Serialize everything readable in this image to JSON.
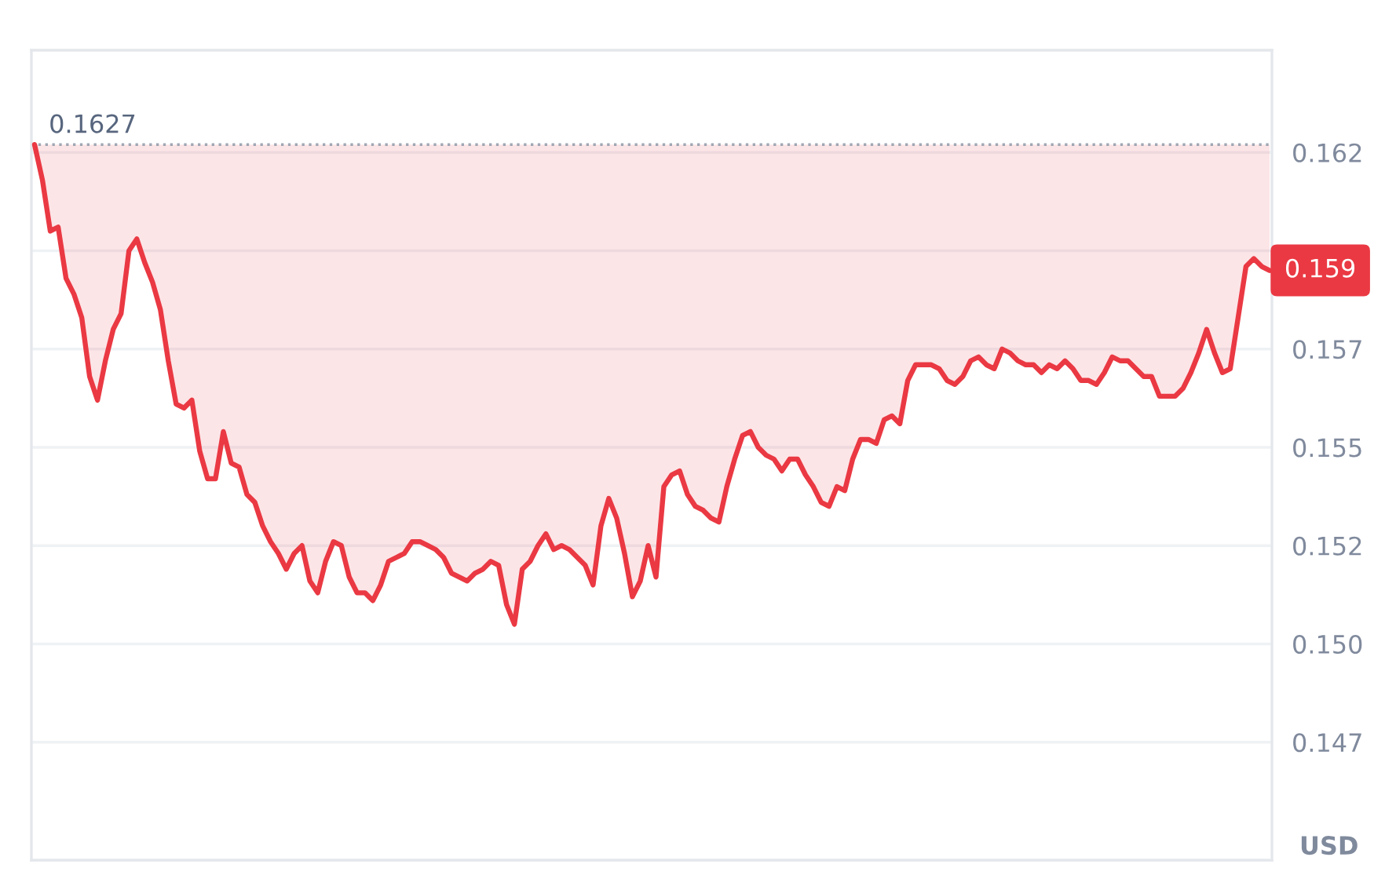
{
  "chart_data": {
    "type": "line",
    "categories": [
      null,
      null,
      null,
      null,
      null,
      null,
      null,
      null,
      null,
      null,
      null,
      null,
      null,
      null,
      null,
      null,
      null,
      null,
      null,
      null,
      null,
      null,
      null,
      null,
      null,
      null,
      null,
      null,
      null,
      null,
      null,
      null,
      null,
      null,
      null,
      null,
      null,
      null,
      null,
      null,
      null,
      null,
      null,
      null,
      null,
      null,
      null,
      null,
      null,
      null,
      null,
      null,
      null,
      null,
      null,
      null,
      null,
      null,
      null,
      null,
      null,
      null,
      null,
      null,
      null,
      null,
      null,
      null,
      null,
      null,
      null,
      null,
      null,
      null,
      null,
      null,
      null,
      null,
      null,
      null,
      null,
      null,
      null,
      null,
      null,
      null,
      null,
      null,
      null,
      null,
      null,
      null,
      null,
      null,
      null,
      null,
      null,
      null,
      null,
      null,
      null,
      null,
      null,
      null,
      null,
      null,
      null,
      null,
      null,
      null,
      null,
      null,
      null,
      null,
      null,
      null,
      null,
      null,
      null,
      null,
      null,
      null,
      null,
      null,
      null,
      null,
      null,
      null,
      null,
      null,
      null,
      null,
      null,
      null,
      null,
      null,
      null,
      null,
      null,
      null,
      null,
      null,
      null,
      null,
      null,
      null,
      null,
      null,
      null,
      null,
      null,
      null,
      null,
      null,
      null,
      null,
      null,
      null
    ],
    "series": [
      {
        "color": "#ea3943",
        "values": [
          0.1627,
          0.1618,
          0.1605,
          0.1606,
          0.1593,
          0.1589,
          0.1583,
          0.1568,
          0.1562,
          0.1572,
          0.158,
          0.1584,
          0.16,
          0.1603,
          0.1597,
          0.1592,
          0.1585,
          0.1572,
          0.1561,
          0.156,
          0.1562,
          0.1549,
          0.1542,
          0.1542,
          0.1554,
          0.1546,
          0.1545,
          0.1538,
          0.1536,
          0.153,
          0.1526,
          0.1523,
          0.1519,
          0.1523,
          0.1525,
          0.1516,
          0.1513,
          0.1521,
          0.1526,
          0.1525,
          0.1517,
          0.1513,
          0.1513,
          0.1511,
          0.1515,
          0.1521,
          0.1522,
          0.1523,
          0.1526,
          0.1526,
          0.1525,
          0.1524,
          0.1522,
          0.1518,
          0.1517,
          0.1516,
          0.1518,
          0.1519,
          0.1521,
          0.152,
          0.151,
          0.1505,
          0.1519,
          0.1521,
          0.1525,
          0.1528,
          0.1524,
          0.1525,
          0.1524,
          0.1522,
          0.152,
          0.1515,
          0.153,
          0.1537,
          0.1532,
          0.1523,
          0.1512,
          0.1516,
          0.1525,
          0.1517,
          0.154,
          0.1543,
          0.1544,
          0.1538,
          0.1535,
          0.1534,
          0.1532,
          0.1531,
          0.154,
          0.1547,
          0.1553,
          0.1554,
          0.155,
          0.1548,
          0.1547,
          0.1544,
          0.1547,
          0.1547,
          0.1543,
          0.154,
          0.1536,
          0.1535,
          0.154,
          0.1539,
          0.1547,
          0.1552,
          0.1552,
          0.1551,
          0.1557,
          0.1558,
          0.1556,
          0.1567,
          0.1571,
          0.1571,
          0.1571,
          0.157,
          0.1567,
          0.1566,
          0.1568,
          0.1572,
          0.1573,
          0.1571,
          0.157,
          0.1575,
          0.1574,
          0.1572,
          0.1571,
          0.1571,
          0.1569,
          0.1571,
          0.157,
          0.1572,
          0.157,
          0.1567,
          0.1567,
          0.1566,
          0.1569,
          0.1573,
          0.1572,
          0.1572,
          0.157,
          0.1568,
          0.1568,
          0.1563,
          0.1563,
          0.1563,
          0.1565,
          0.1569,
          0.1574,
          0.158,
          0.1574,
          0.1569,
          0.157,
          0.1583,
          0.1596,
          0.1598,
          0.1596,
          0.1595
        ],
        "lower": [
          0.1627,
          0.1618,
          0.1605,
          0.1606,
          0.1593,
          0.1589,
          0.1583,
          0.1568,
          0.1562,
          0.1572,
          0.158,
          0.1584,
          0.16,
          0.1603,
          0.1597,
          0.1592,
          0.1585,
          0.1572,
          0.1561,
          0.156,
          0.1562,
          0.1549,
          0.1542,
          0.1542,
          0.1554,
          0.1546,
          0.1545,
          0.1538,
          0.1536,
          0.153,
          0.1526,
          0.1523,
          0.1519,
          0.1523,
          0.1525,
          0.1516,
          0.1513,
          0.1521,
          0.1526,
          0.1525,
          0.1517,
          0.1513,
          0.1513,
          0.1511,
          0.1515,
          0.1521,
          0.1522,
          0.1523,
          0.1526,
          0.1526,
          0.1525,
          0.1524,
          0.1522,
          0.1518,
          0.1517,
          0.1516,
          0.1518,
          0.1519,
          0.1521,
          0.152,
          0.151,
          0.1505,
          0.1519,
          0.1521,
          0.1525,
          0.1528,
          0.1524,
          0.1525,
          0.1524,
          0.1522,
          0.152,
          0.1515,
          0.153,
          0.1537,
          0.1532,
          0.1523,
          0.1512,
          0.1516,
          0.1525,
          0.1517,
          0.154,
          0.1543,
          0.1544,
          0.1538,
          0.1535,
          0.1534,
          0.1532,
          0.1531,
          0.154,
          0.1547,
          0.1553,
          0.1554,
          0.155,
          0.1548,
          0.1547,
          0.1544,
          0.1547,
          0.1547,
          0.1543,
          0.154,
          0.1536,
          0.1535,
          0.154,
          0.1539,
          0.1547,
          0.1552,
          0.1552,
          0.1551,
          0.1557,
          0.1558,
          0.1556,
          0.1567,
          0.1571,
          0.1571,
          0.1571,
          0.157,
          0.1567,
          0.1566,
          0.1568,
          0.1572,
          0.1573,
          0.1571,
          0.157,
          0.1575,
          0.1574,
          0.1572,
          0.1571,
          0.1571,
          0.1569,
          0.1571,
          0.157,
          0.1572,
          0.157,
          0.1567,
          0.1567,
          0.1566,
          0.1569,
          0.1573,
          0.1572,
          0.1572,
          0.157,
          0.1568,
          0.1568,
          0.1563,
          0.1563,
          0.1563,
          0.1565,
          0.1569,
          0.1574,
          0.158,
          0.1574,
          0.1569,
          0.157,
          0.1583,
          0.1596,
          0.1598,
          0.1596,
          0.1595
        ],
        "upper": [
          0.1627,
          0.1627,
          0.1627,
          0.1627,
          0.1627,
          0.1627,
          0.1627,
          0.1627,
          0.1627,
          0.1627,
          0.1627,
          0.1627,
          0.1627,
          0.1627,
          0.1627,
          0.1627,
          0.1627,
          0.1627,
          0.1627,
          0.1627,
          0.1627,
          0.1627,
          0.1627,
          0.1627,
          0.1627,
          0.1627,
          0.1627,
          0.1627,
          0.1627,
          0.1627,
          0.1627,
          0.1627,
          0.1627,
          0.1627,
          0.1627,
          0.1627,
          0.1627,
          0.1627,
          0.1627,
          0.1627,
          0.1627,
          0.1627,
          0.1627,
          0.1627,
          0.1627,
          0.1627,
          0.1627,
          0.1627,
          0.1627,
          0.1627,
          0.1627,
          0.1627,
          0.1627,
          0.1627,
          0.1627,
          0.1627,
          0.1627,
          0.1627,
          0.1627,
          0.1627,
          0.1627,
          0.1627,
          0.1627,
          0.1627,
          0.1627,
          0.1627,
          0.1627,
          0.1627,
          0.1627,
          0.1627,
          0.1627,
          0.1627,
          0.1627,
          0.1627,
          0.1627,
          0.1627,
          0.1627,
          0.1627,
          0.1627,
          0.1627,
          0.1627,
          0.1627,
          0.1627,
          0.1627,
          0.1627,
          0.1627,
          0.1627,
          0.1627,
          0.1627,
          0.1627,
          0.1627,
          0.1627,
          0.1627,
          0.1627,
          0.1627,
          0.1627,
          0.1627,
          0.1627,
          0.1627,
          0.1627,
          0.1627,
          0.1627,
          0.1627,
          0.1627,
          0.1627,
          0.1627,
          0.1627,
          0.1627,
          0.1627,
          0.1627,
          0.1627,
          0.1627,
          0.1627,
          0.1627,
          0.1627,
          0.1627,
          0.1627,
          0.1627,
          0.1627,
          0.1627,
          0.1627,
          0.1627,
          0.1627,
          0.1627,
          0.1627,
          0.1627,
          0.1627,
          0.1627,
          0.1627,
          0.1627,
          0.1627,
          0.1627,
          0.1627,
          0.1627,
          0.1627,
          0.1627,
          0.1627,
          0.1627,
          0.1627,
          0.1627,
          0.1627,
          0.1627,
          0.1627,
          0.1627,
          0.1627,
          0.1627,
          0.1627,
          0.1627,
          0.1627,
          0.1627,
          0.1627,
          0.1627,
          0.1627,
          0.1627,
          0.1627,
          0.1627,
          0.1627,
          0.1627
        ]
      }
    ],
    "ylim": [
      0.1445,
      0.1651
    ],
    "yticks": [
      {
        "value": 0.1475,
        "label": "0.147"
      },
      {
        "value": 0.15,
        "label": "0.150"
      },
      {
        "value": 0.1525,
        "label": "0.152"
      },
      0.155,
      {
        "value": 0.1575,
        "label": "0.157"
      },
      {
        "value": 0.16,
        "label": null
      },
      {
        "value": 0.1625,
        "label": "0.162"
      }
    ],
    "ylabel": "USD",
    "ref_lines": [
      {
        "axis": "y",
        "value": 0.1627,
        "label": "0.1627",
        "color": "#a0a7b4",
        "line_style": "dotted"
      }
    ],
    "annotations": [
      "0.159"
    ],
    "grid": "y",
    "tick_labels": "y"
  }
}
